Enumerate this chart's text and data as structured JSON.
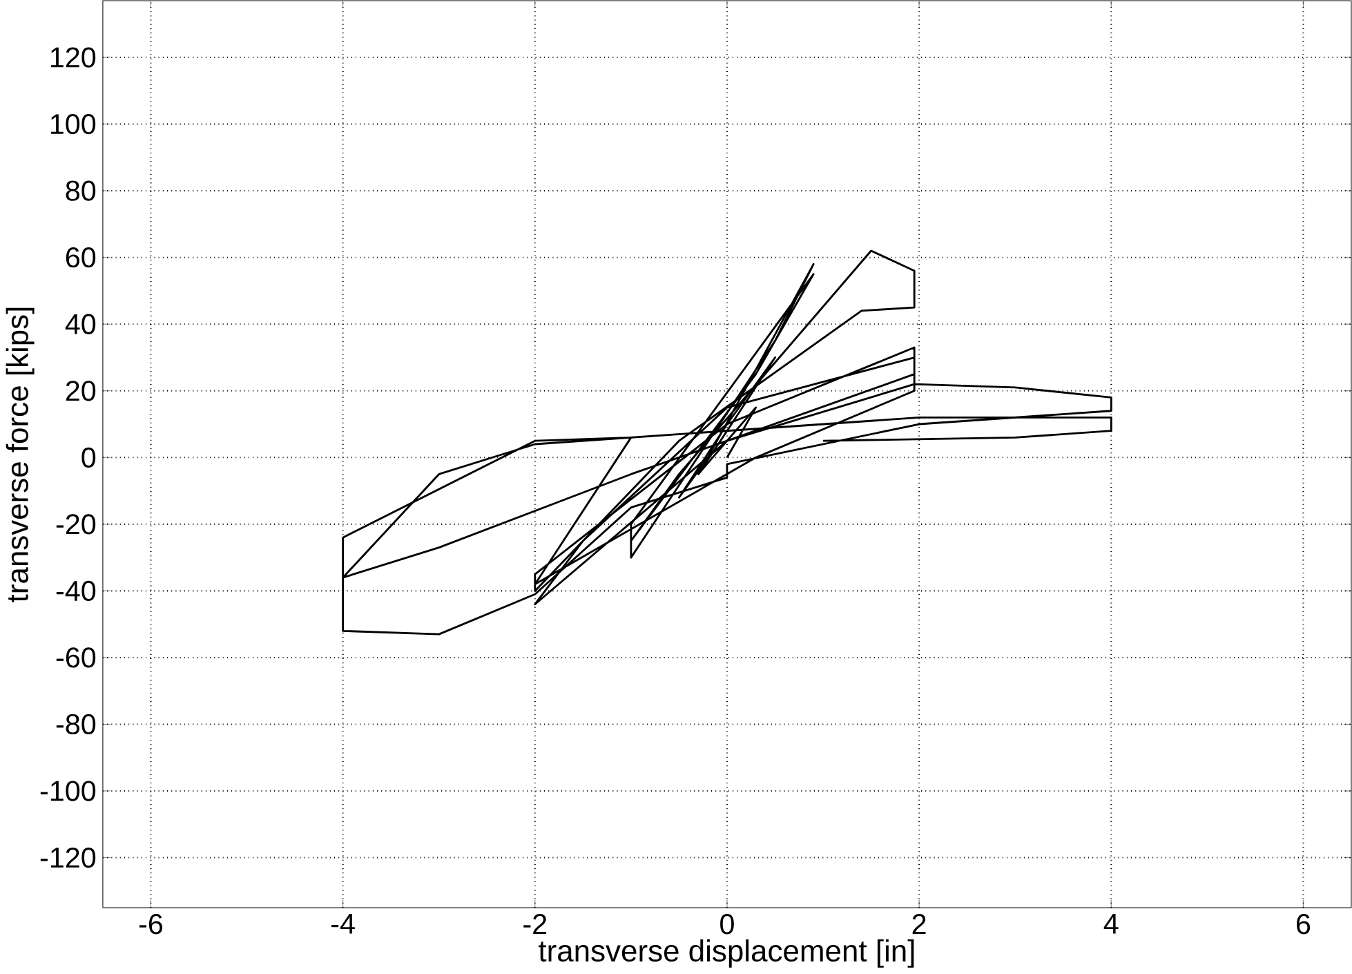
{
  "chart_data": {
    "type": "line",
    "xlabel": "transverse displacement [in]",
    "ylabel": "transverse force [kips]",
    "xlim": [
      -6.5,
      6.5
    ],
    "ylim": [
      -135,
      137
    ],
    "xticks": [
      -6,
      -4,
      -2,
      0,
      2,
      4,
      6
    ],
    "yticks": [
      -120,
      -100,
      -80,
      -60,
      -40,
      -20,
      0,
      20,
      40,
      60,
      80,
      100,
      120
    ],
    "grid": true,
    "marker": "none",
    "line_style": "solid",
    "series": [
      {
        "color": "#000000",
        "x": [
          0,
          0.3,
          0,
          -0.3,
          0,
          0.5,
          0,
          -0.5,
          -0.2,
          0.9,
          0.5,
          -1,
          -1,
          0.9,
          0.3,
          -1,
          -0.5,
          1.5,
          1.95,
          1.95,
          1.4,
          -0.5,
          -2,
          -2,
          0,
          1.95,
          1.95,
          0,
          -2,
          -1.5,
          0,
          1.95,
          1.95,
          0.3,
          -2,
          -1,
          -2,
          -4,
          -4,
          -3,
          -1,
          0,
          1.95,
          3,
          4,
          4,
          2,
          0,
          0,
          -1,
          -2,
          -3,
          -4,
          -4,
          -3,
          -2,
          0,
          2,
          4,
          4,
          3,
          1
        ],
        "values": [
          0,
          15,
          5,
          -5,
          8,
          30,
          10,
          -12,
          0,
          58,
          35,
          -30,
          -20,
          55,
          25,
          -25,
          -5,
          62,
          56,
          45,
          44,
          5,
          -40,
          -35,
          10,
          33,
          25,
          5,
          -44,
          -25,
          15,
          30,
          20,
          0,
          -38,
          6,
          5,
          -24,
          -36,
          -27,
          -5,
          5,
          22,
          21,
          18,
          14,
          10,
          -2,
          -6,
          -15,
          -41,
          -53,
          -52,
          -36,
          -5,
          4,
          8,
          12,
          12,
          8,
          6,
          5
        ]
      }
    ]
  }
}
